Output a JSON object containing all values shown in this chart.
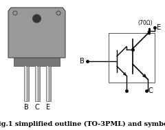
{
  "title": "Fig.1 simplified outline (TO-3PML) and symbol",
  "title_fontsize": 7.0,
  "bg_color": "#ffffff",
  "pin_labels": [
    "B",
    "C",
    "E"
  ],
  "resistor_label": "(70Ω)",
  "terminal_B": "B",
  "terminal_C": "C",
  "terminal_E": "E",
  "pkg_body_color": "#999999",
  "pkg_edge_color": "#444444",
  "pkg_hole_color": "#333333",
  "pin_color": "#bbbbbb",
  "schematic_lw": 1.0
}
